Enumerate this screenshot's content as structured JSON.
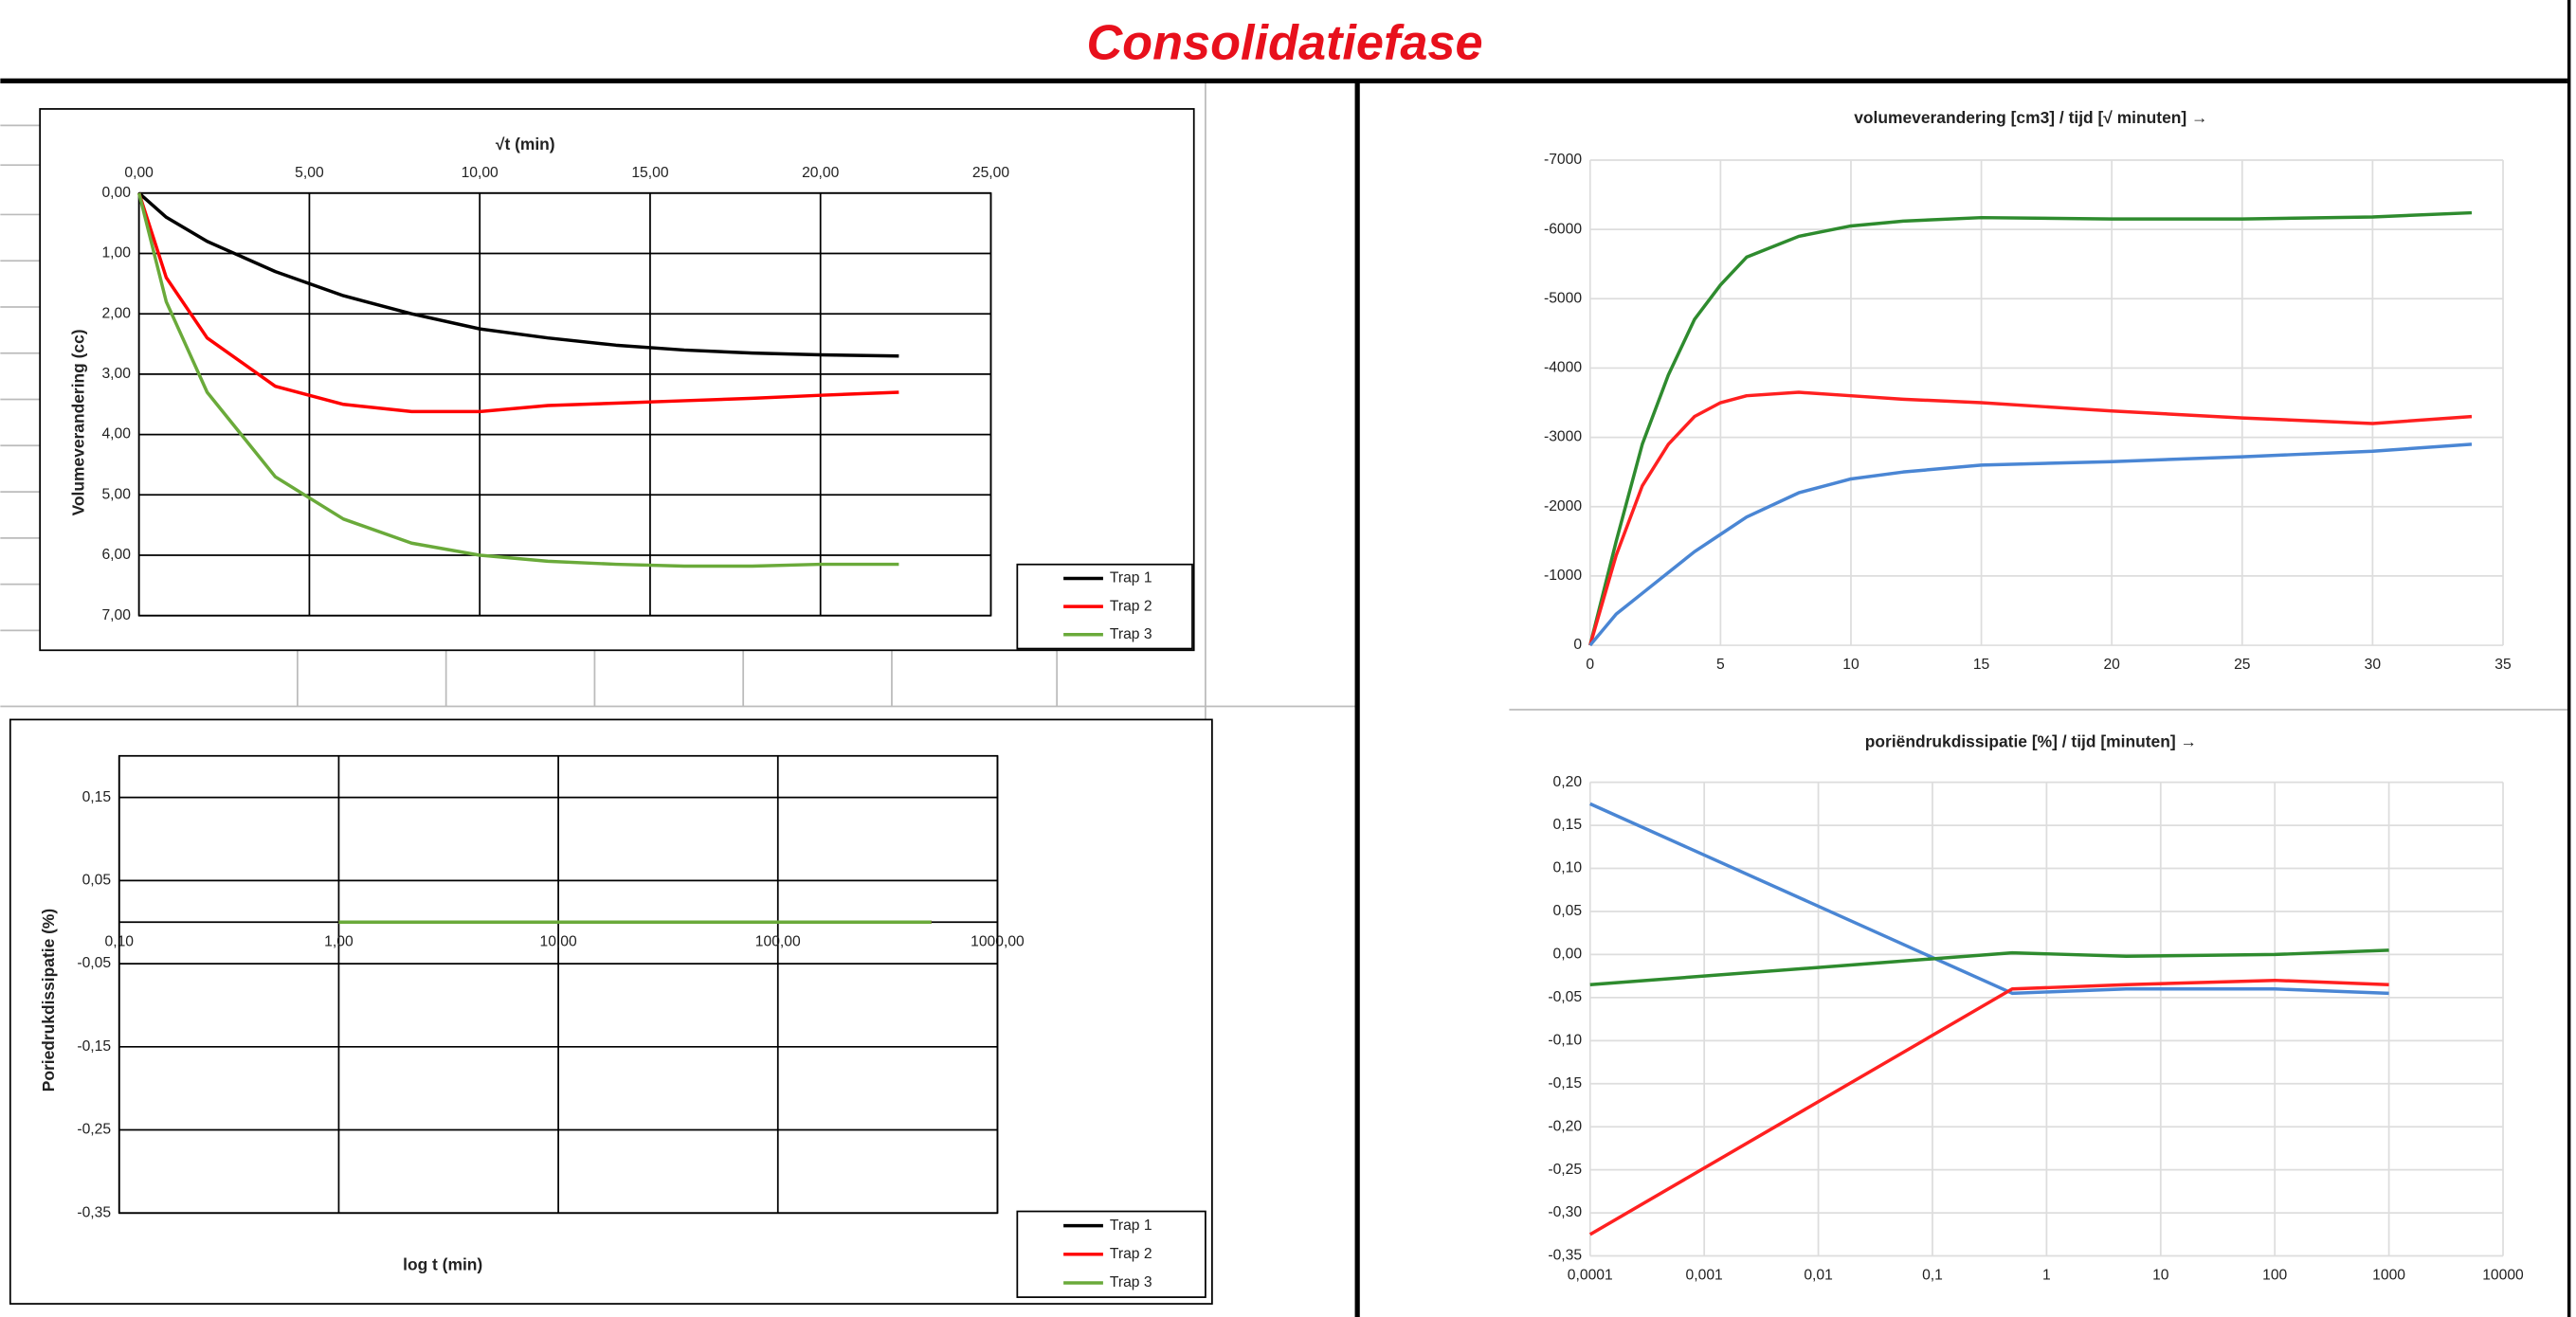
{
  "header": {
    "title": "Consolidatiefase"
  },
  "chart_data": [
    {
      "type": "line",
      "x_label": "√t (min)",
      "y_label": "Volumeverandering (cc)",
      "x": [
        0,
        0.8,
        2,
        4,
        6,
        8,
        10,
        12,
        14,
        16,
        18,
        20,
        22.3
      ],
      "series": [
        {
          "name": "Trap 1",
          "color": "#000000",
          "values": [
            0,
            0.4,
            0.8,
            1.3,
            1.7,
            2.0,
            2.25,
            2.4,
            2.52,
            2.6,
            2.65,
            2.68,
            2.7
          ]
        },
        {
          "name": "Trap 2",
          "color": "#ff0000",
          "values": [
            0,
            1.4,
            2.4,
            3.2,
            3.5,
            3.62,
            3.62,
            3.52,
            3.48,
            3.44,
            3.4,
            3.35,
            3.3
          ]
        },
        {
          "name": "Trap 3",
          "color": "#6aaa3a",
          "values": [
            0,
            1.8,
            3.3,
            4.7,
            5.4,
            5.8,
            6.0,
            6.1,
            6.15,
            6.18,
            6.18,
            6.15,
            6.15
          ]
        }
      ],
      "xlim": [
        0,
        25
      ],
      "xticks": [
        {
          "value": 0,
          "label": "0,00"
        },
        {
          "value": 5,
          "label": "5,00"
        },
        {
          "value": 10,
          "label": "10,00"
        },
        {
          "value": 15,
          "label": "15,00"
        },
        {
          "value": 20,
          "label": "20,00"
        },
        {
          "value": 25,
          "label": "25,00"
        }
      ],
      "ylim": [
        0,
        7
      ],
      "y_reversed": true,
      "x_axis_position": "top",
      "yticks": [
        {
          "value": 0,
          "label": "0,00"
        },
        {
          "value": 1,
          "label": "1,00"
        },
        {
          "value": 2,
          "label": "2,00"
        },
        {
          "value": 3,
          "label": "3,00"
        },
        {
          "value": 4,
          "label": "4,00"
        },
        {
          "value": 5,
          "label": "5,00"
        },
        {
          "value": 6,
          "label": "6,00"
        },
        {
          "value": 7,
          "label": "7,00"
        }
      ],
      "grid": true,
      "legend": "lower right"
    },
    {
      "type": "line",
      "x_label": "log t (min)",
      "y_label": "Poriedrukdissipatie (%)",
      "log_x": true,
      "x": [
        1,
        10,
        100,
        500
      ],
      "series": [
        {
          "name": "Trap 1",
          "color": "#000000",
          "values": [
            0,
            0,
            0,
            0
          ]
        },
        {
          "name": "Trap 2",
          "color": "#ff0000",
          "values": [
            0,
            0,
            0,
            0
          ]
        },
        {
          "name": "Trap 3",
          "color": "#6aaa3a",
          "values": [
            0,
            0,
            0,
            0
          ]
        }
      ],
      "xlim": [
        0.1,
        1000
      ],
      "xticks": [
        {
          "value": 0.1,
          "label": "0,10"
        },
        {
          "value": 1,
          "label": "1,00"
        },
        {
          "value": 10,
          "label": "10,00"
        },
        {
          "value": 100,
          "label": "100,00"
        },
        {
          "value": 1000,
          "label": "1000,00"
        }
      ],
      "ylim": [
        -0.35,
        0.2
      ],
      "yticks": [
        {
          "value": -0.35,
          "label": "-0,35"
        },
        {
          "value": -0.25,
          "label": "-0,25"
        },
        {
          "value": -0.15,
          "label": "-0,15"
        },
        {
          "value": -0.05,
          "label": "-0,05"
        },
        {
          "value": 0.05,
          "label": "0,05"
        },
        {
          "value": 0.15,
          "label": "0,15"
        }
      ],
      "grid": true,
      "legend": "lower right"
    },
    {
      "type": "line",
      "title": "volumeverandering [cm3] / tijd [√ minuten] →",
      "x": [
        0,
        1,
        2,
        3,
        4,
        5,
        6,
        8,
        10,
        12,
        15,
        20,
        25,
        30,
        33.8
      ],
      "series": [
        {
          "color": "#2e8b2e",
          "values": [
            0,
            -1500,
            -2900,
            -3900,
            -4700,
            -5200,
            -5600,
            -5900,
            -6050,
            -6120,
            -6170,
            -6150,
            -6150,
            -6180,
            -6240
          ]
        },
        {
          "color": "#ff2020",
          "values": [
            0,
            -1300,
            -2300,
            -2900,
            -3300,
            -3500,
            -3600,
            -3650,
            -3600,
            -3550,
            -3500,
            -3380,
            -3280,
            -3200,
            -3300
          ]
        },
        {
          "color": "#4a86d4",
          "values": [
            0,
            -450,
            -750,
            -1050,
            -1350,
            -1600,
            -1850,
            -2200,
            -2400,
            -2500,
            -2600,
            -2650,
            -2720,
            -2800,
            -2900
          ]
        }
      ],
      "xlim": [
        0,
        35
      ],
      "xticks": [
        0,
        5,
        10,
        15,
        20,
        25,
        30,
        35
      ],
      "ylim": [
        -7000,
        0
      ],
      "y_reversed": true,
      "yticks": [
        0,
        -1000,
        -2000,
        -3000,
        -4000,
        -5000,
        -6000,
        -7000
      ],
      "grid": true
    },
    {
      "type": "line",
      "title": "poriëndrukdissipatie [%] / tijd [minuten] →",
      "log_x": true,
      "x": [
        0.0001,
        0.5,
        5,
        100,
        1000
      ],
      "series": [
        {
          "color": "#4a86d4",
          "values": [
            0.175,
            -0.045,
            -0.04,
            -0.04,
            -0.045
          ]
        },
        {
          "color": "#ff2020",
          "values": [
            -0.325,
            -0.04,
            -0.035,
            -0.03,
            -0.035
          ]
        },
        {
          "color": "#2e8b2e",
          "values": [
            -0.035,
            0.002,
            -0.002,
            0,
            0.005
          ]
        }
      ],
      "xlim": [
        0.0001,
        10000
      ],
      "xticks": [
        {
          "value": 0.0001,
          "label": "0,0001"
        },
        {
          "value": 0.001,
          "label": "0,001"
        },
        {
          "value": 0.01,
          "label": "0,01"
        },
        {
          "value": 0.1,
          "label": "0,1"
        },
        1,
        10,
        100,
        1000,
        10000
      ],
      "ylim": [
        -0.35,
        0.2
      ],
      "yticks": [
        {
          "value": 0.2,
          "label": "0,20"
        },
        {
          "value": 0.15,
          "label": "0,15"
        },
        {
          "value": 0.1,
          "label": "0,10"
        },
        {
          "value": 0.05,
          "label": "0,05"
        },
        {
          "value": 0,
          "label": "0,00"
        },
        {
          "value": -0.05,
          "label": "-0,05"
        },
        {
          "value": -0.1,
          "label": "-0,10"
        },
        {
          "value": -0.15,
          "label": "-0,15"
        },
        {
          "value": -0.2,
          "label": "-0,20"
        },
        {
          "value": -0.25,
          "label": "-0,25"
        },
        {
          "value": -0.3,
          "label": "-0,30"
        },
        {
          "value": -0.35,
          "label": "-0,35"
        }
      ],
      "grid": true
    }
  ]
}
